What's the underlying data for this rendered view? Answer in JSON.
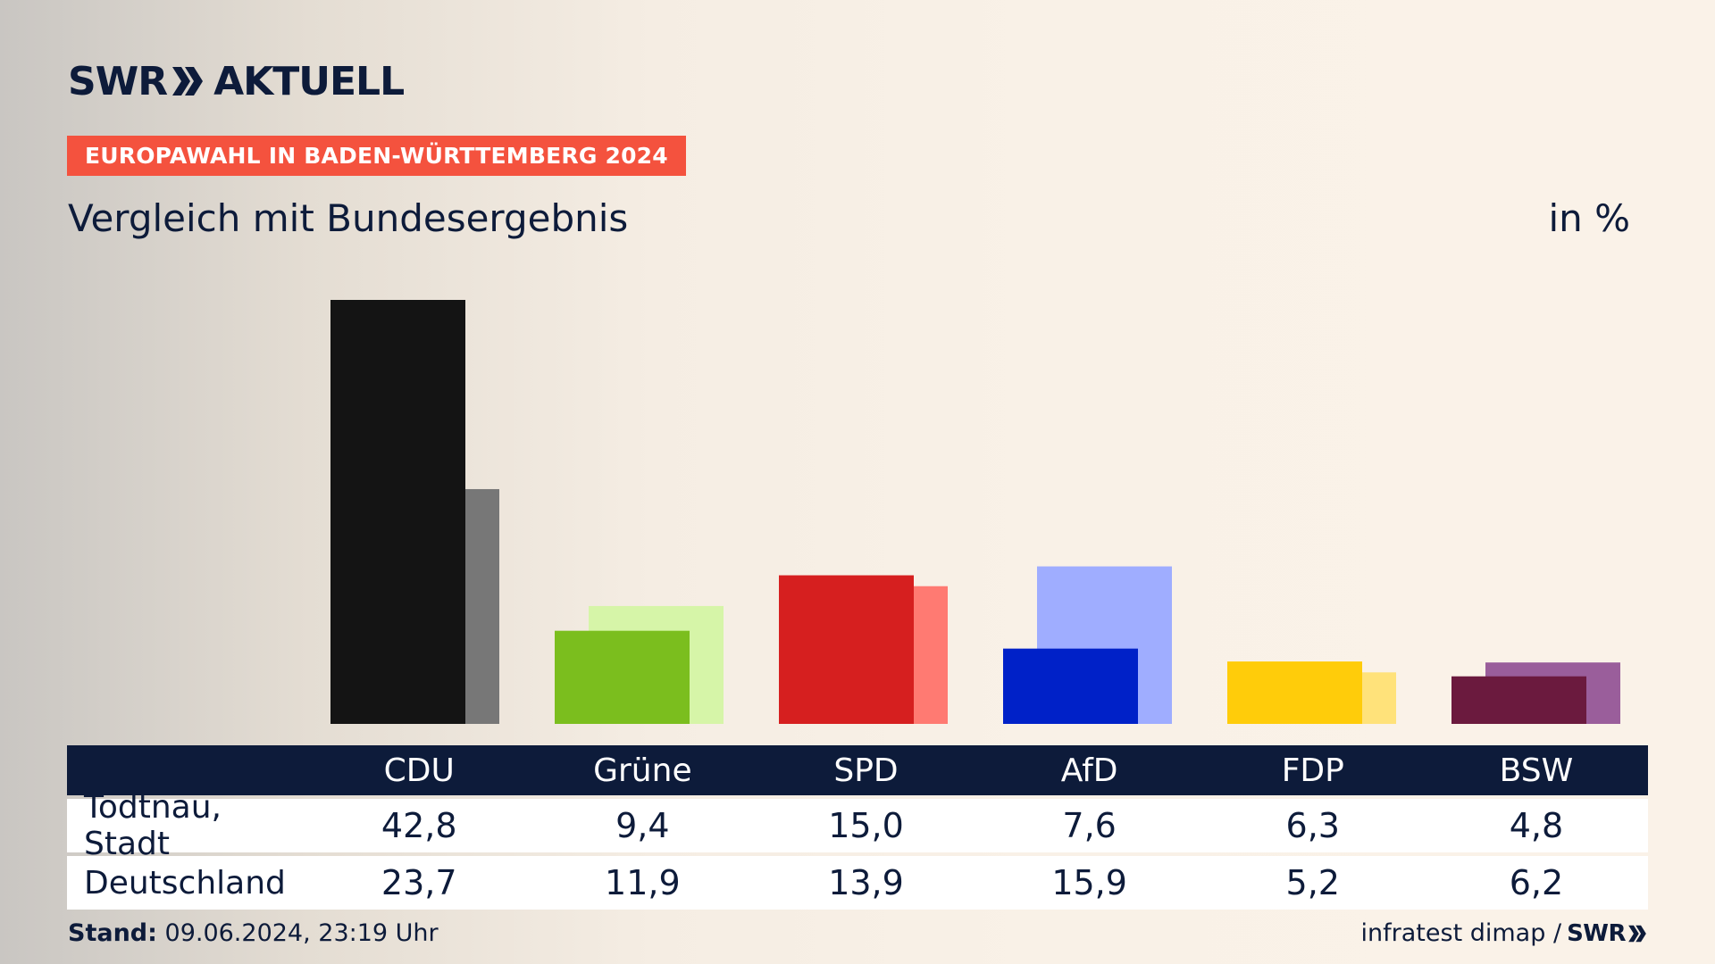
{
  "brand": {
    "logo_left": "SWR",
    "logo_right": "AKTUELL",
    "footer_logo": "SWR"
  },
  "header": {
    "tag": "EUROPAWAHL IN BADEN-WÜRTTEMBERG 2024",
    "subtitle": "Vergleich mit Bundesergebnis",
    "unit": "in %"
  },
  "table": {
    "rows": [
      {
        "label": "Todtnau, Stadt"
      },
      {
        "label": "Deutschland"
      }
    ]
  },
  "footer": {
    "stand_label": "Stand:",
    "stand_value": "09.06.2024, 23:19 Uhr",
    "source": "infratest dimap /"
  },
  "chart_data": {
    "type": "bar",
    "categories": [
      "CDU",
      "Grüne",
      "SPD",
      "AfD",
      "FDP",
      "BSW"
    ],
    "series": [
      {
        "name": "Todtnau, Stadt",
        "values": [
          42.8,
          9.4,
          15.0,
          7.6,
          6.3,
          4.8
        ],
        "values_text": [
          "42,8",
          "9,4",
          "15,0",
          "7,6",
          "6,3",
          "4,8"
        ]
      },
      {
        "name": "Deutschland",
        "values": [
          23.7,
          11.9,
          13.9,
          15.9,
          5.2,
          6.2
        ],
        "values_text": [
          "23,7",
          "11,9",
          "13,9",
          "15,9",
          "5,2",
          "6,2"
        ]
      }
    ],
    "colors_local": [
      "#141414",
      "#7bbe1e",
      "#d61f1f",
      "#0021c8",
      "#ffcc0a",
      "#6b1a3e"
    ],
    "colors_national": [
      "#777777",
      "#d6f5a8",
      "#ff7a72",
      "#9fadff",
      "#ffe27a",
      "#9a5e9b"
    ],
    "ylim": [
      0,
      42.8
    ]
  }
}
